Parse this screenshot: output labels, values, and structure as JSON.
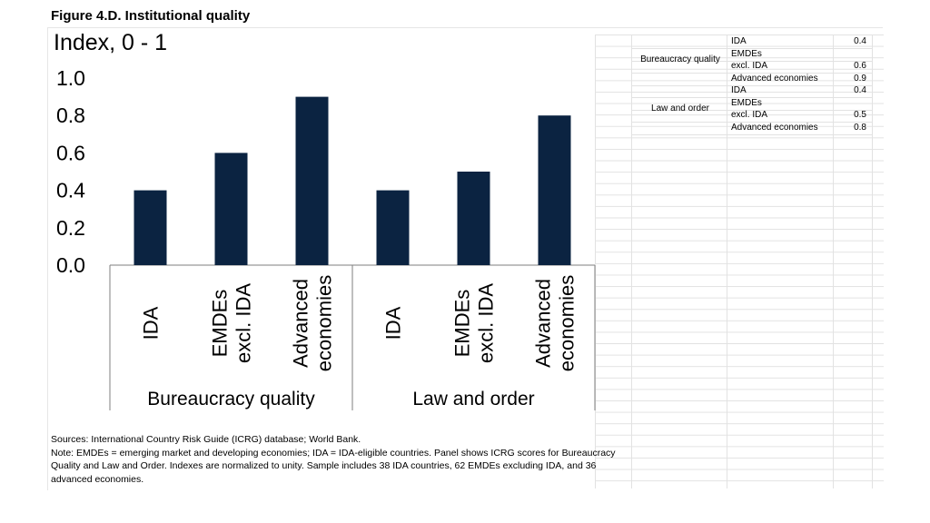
{
  "figure_title": "Figure 4.D. Institutional quality",
  "chart_data": {
    "type": "bar",
    "title": "Figure 4.D. Institutional quality",
    "ylabel": "Index, 0 - 1",
    "ylim": [
      0,
      1.0
    ],
    "yticks": [
      "0.0",
      "0.2",
      "0.4",
      "0.6",
      "0.8",
      "1.0"
    ],
    "grid": false,
    "bar_color": "#0b2341",
    "groups": [
      {
        "name": "Bureaucracy quality",
        "categories": [
          [
            "IDA"
          ],
          [
            "EMDEs",
            "excl. IDA"
          ],
          [
            "Advanced",
            "economies"
          ]
        ],
        "values": [
          0.4,
          0.6,
          0.9
        ]
      },
      {
        "name": "Law and order",
        "categories": [
          [
            "IDA"
          ],
          [
            "EMDEs",
            "excl. IDA"
          ],
          [
            "Advanced",
            "economies"
          ]
        ],
        "values": [
          0.4,
          0.5,
          0.8
        ]
      }
    ]
  },
  "table": {
    "groups": [
      {
        "name": "Bureaucracy quality",
        "rows": [
          {
            "label": [
              "IDA"
            ],
            "value": "0.4"
          },
          {
            "label": [
              "EMDEs",
              "excl. IDA"
            ],
            "value": "0.6"
          },
          {
            "label": [
              "Advanced economies"
            ],
            "value": "0.9"
          }
        ]
      },
      {
        "name": "Law and order",
        "rows": [
          {
            "label": [
              "IDA"
            ],
            "value": "0.4"
          },
          {
            "label": [
              "EMDEs",
              "excl. IDA"
            ],
            "value": "0.5"
          },
          {
            "label": [
              "Advanced economies"
            ],
            "value": "0.8"
          }
        ]
      }
    ]
  },
  "footer": {
    "sources": "Sources: International Country Risk Guide (ICRG) database; World Bank.",
    "note": "Note: EMDEs = emerging market and developing economies; IDA = IDA-eligible countries. Panel shows ICRG scores for Bureaucracy Quality and Law and Order. Indexes are normalized to unity. Sample includes 38 IDA countries, 62 EMDEs excluding IDA, and 36 advanced economies."
  }
}
